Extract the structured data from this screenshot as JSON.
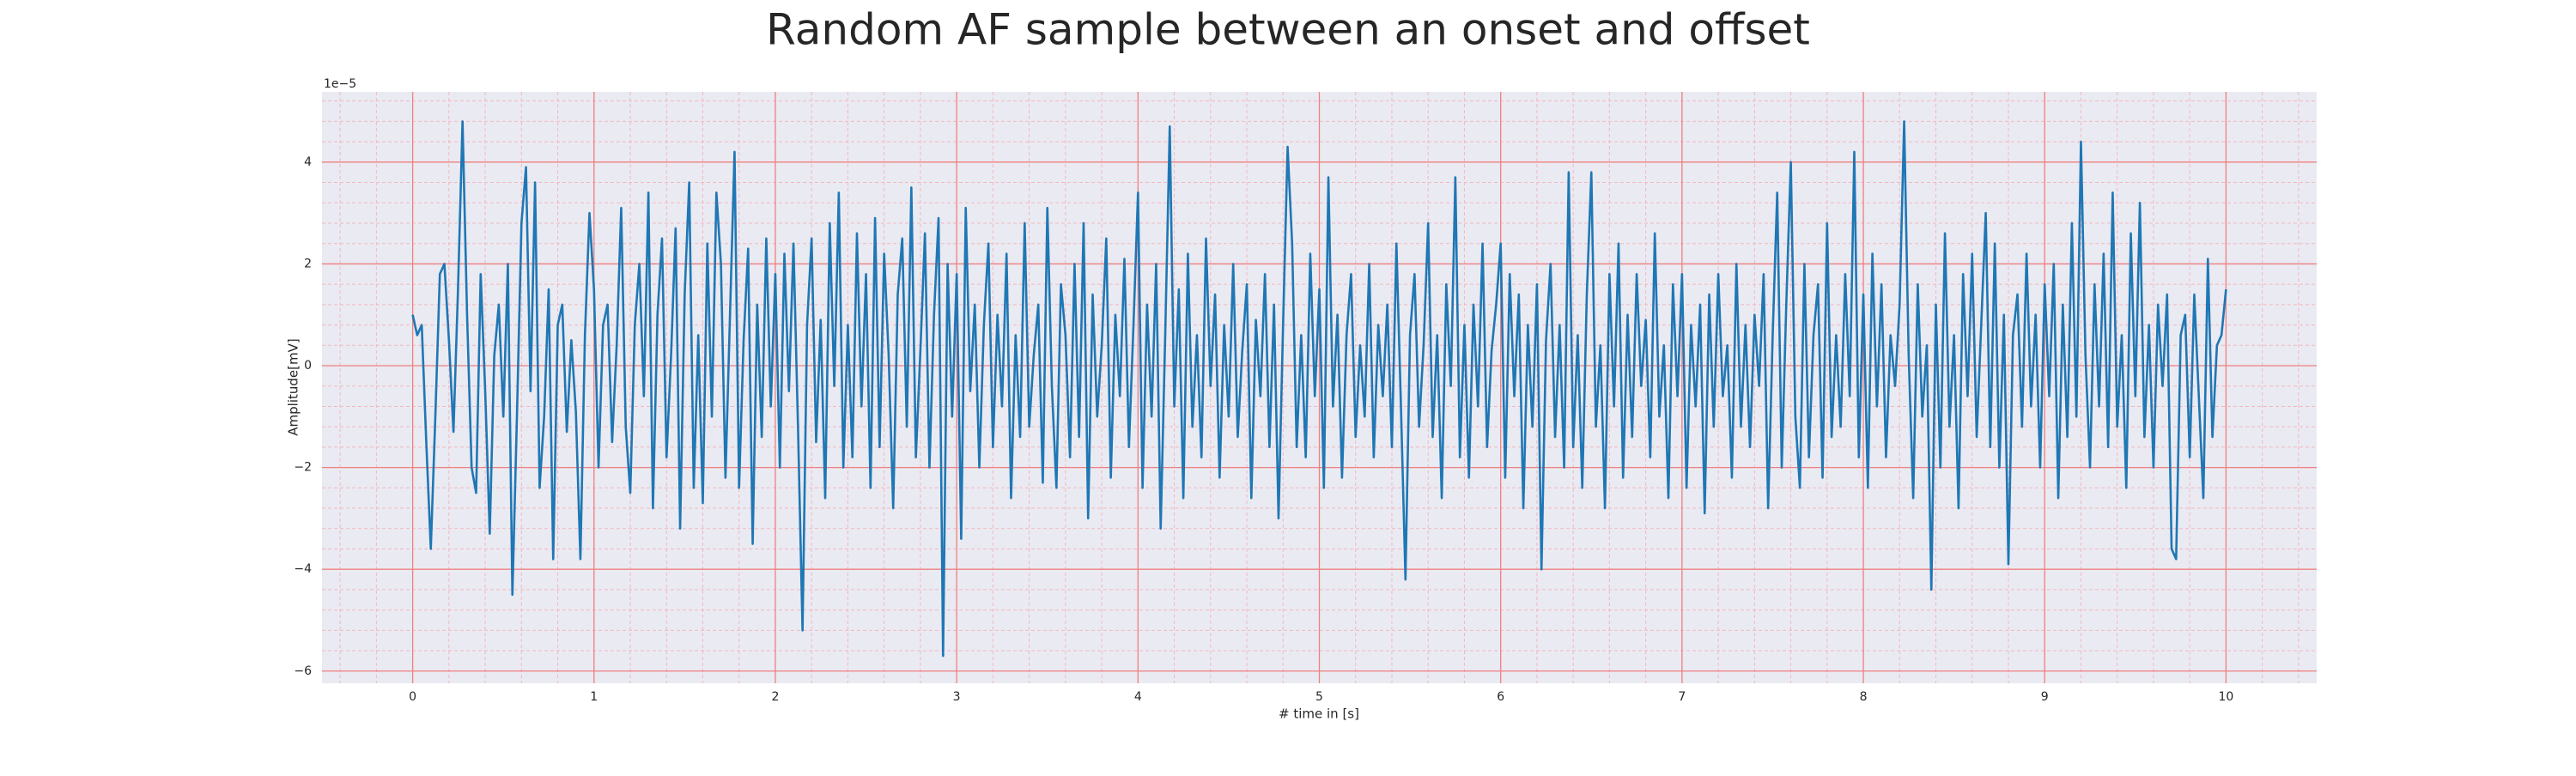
{
  "chart_data": {
    "type": "line",
    "title": "Random AF sample between an onset and offset",
    "xlabel": "# time in [s]",
    "ylabel": "Amplitude[mV]",
    "y_offset_label": "1e−5",
    "color": "#1f77b4",
    "grid": true,
    "minor_grid": true,
    "xlim": [
      -0.5,
      10.5
    ],
    "ylim": [
      -6.24,
      5.38
    ],
    "xticks": [
      0,
      1,
      2,
      3,
      4,
      5,
      6,
      7,
      8,
      9,
      10
    ],
    "yticks": [
      {
        "value": -6,
        "label": "−6"
      },
      {
        "value": -4,
        "label": "−4"
      },
      {
        "value": -2,
        "label": "−2"
      },
      0,
      2,
      4
    ],
    "x": [
      0,
      0.025,
      0.05,
      0.075,
      0.1,
      0.125,
      0.15,
      0.175,
      0.2,
      0.225,
      0.25,
      0.275,
      0.3,
      0.325,
      0.35,
      0.375,
      0.4,
      0.425,
      0.45,
      0.475,
      0.5,
      0.525,
      0.55,
      0.575,
      0.6,
      0.625,
      0.65,
      0.675,
      0.7,
      0.725,
      0.75,
      0.775,
      0.8,
      0.825,
      0.85,
      0.875,
      0.9,
      0.925,
      0.95,
      0.975,
      1,
      1.025,
      1.05,
      1.075,
      1.1,
      1.125,
      1.15,
      1.175,
      1.2,
      1.225,
      1.25,
      1.275,
      1.3,
      1.325,
      1.35,
      1.375,
      1.4,
      1.425,
      1.45,
      1.475,
      1.5,
      1.525,
      1.55,
      1.575,
      1.6,
      1.625,
      1.65,
      1.675,
      1.7,
      1.725,
      1.75,
      1.775,
      1.8,
      1.825,
      1.85,
      1.875,
      1.9,
      1.925,
      1.95,
      1.975,
      2,
      2.025,
      2.05,
      2.075,
      2.1,
      2.125,
      2.15,
      2.175,
      2.2,
      2.225,
      2.25,
      2.275,
      2.3,
      2.325,
      2.35,
      2.375,
      2.4,
      2.425,
      2.45,
      2.475,
      2.5,
      2.525,
      2.55,
      2.575,
      2.6,
      2.625,
      2.65,
      2.675,
      2.7,
      2.725,
      2.75,
      2.775,
      2.8,
      2.825,
      2.85,
      2.875,
      2.9,
      2.925,
      2.95,
      2.975,
      3,
      3.025,
      3.05,
      3.075,
      3.1,
      3.125,
      3.15,
      3.175,
      3.2,
      3.225,
      3.25,
      3.275,
      3.3,
      3.325,
      3.35,
      3.375,
      3.4,
      3.425,
      3.45,
      3.475,
      3.5,
      3.525,
      3.55,
      3.575,
      3.6,
      3.625,
      3.65,
      3.675,
      3.7,
      3.725,
      3.75,
      3.775,
      3.8,
      3.825,
      3.85,
      3.875,
      3.9,
      3.925,
      3.95,
      3.975,
      4,
      4.025,
      4.05,
      4.075,
      4.1,
      4.125,
      4.15,
      4.175,
      4.2,
      4.225,
      4.25,
      4.275,
      4.3,
      4.325,
      4.35,
      4.375,
      4.4,
      4.425,
      4.45,
      4.475,
      4.5,
      4.525,
      4.55,
      4.575,
      4.6,
      4.625,
      4.65,
      4.675,
      4.7,
      4.725,
      4.75,
      4.775,
      4.8,
      4.825,
      4.85,
      4.875,
      4.9,
      4.925,
      4.95,
      4.975,
      5,
      5.025,
      5.05,
      5.075,
      5.1,
      5.125,
      5.15,
      5.175,
      5.2,
      5.225,
      5.25,
      5.275,
      5.3,
      5.325,
      5.35,
      5.375,
      5.4,
      5.425,
      5.45,
      5.475,
      5.5,
      5.525,
      5.55,
      5.575,
      5.6,
      5.625,
      5.65,
      5.675,
      5.7,
      5.725,
      5.75,
      5.775,
      5.8,
      5.825,
      5.85,
      5.875,
      5.9,
      5.925,
      5.95,
      5.975,
      6,
      6.025,
      6.05,
      6.075,
      6.1,
      6.125,
      6.15,
      6.175,
      6.2,
      6.225,
      6.25,
      6.275,
      6.3,
      6.325,
      6.35,
      6.375,
      6.4,
      6.425,
      6.45,
      6.475,
      6.5,
      6.525,
      6.55,
      6.575,
      6.6,
      6.625,
      6.65,
      6.675,
      6.7,
      6.725,
      6.75,
      6.775,
      6.8,
      6.825,
      6.85,
      6.875,
      6.9,
      6.925,
      6.95,
      6.975,
      7,
      7.025,
      7.05,
      7.075,
      7.1,
      7.125,
      7.15,
      7.175,
      7.2,
      7.225,
      7.25,
      7.275,
      7.3,
      7.325,
      7.35,
      7.375,
      7.4,
      7.425,
      7.45,
      7.475,
      7.5,
      7.525,
      7.55,
      7.575,
      7.6,
      7.625,
      7.65,
      7.675,
      7.7,
      7.725,
      7.75,
      7.775,
      7.8,
      7.825,
      7.85,
      7.875,
      7.9,
      7.925,
      7.95,
      7.975,
      8,
      8.025,
      8.05,
      8.075,
      8.1,
      8.125,
      8.15,
      8.175,
      8.2,
      8.225,
      8.25,
      8.275,
      8.3,
      8.325,
      8.35,
      8.375,
      8.4,
      8.425,
      8.45,
      8.475,
      8.5,
      8.525,
      8.55,
      8.575,
      8.6,
      8.625,
      8.65,
      8.675,
      8.7,
      8.725,
      8.75,
      8.775,
      8.8,
      8.825,
      8.85,
      8.875,
      8.9,
      8.925,
      8.95,
      8.975,
      9,
      9.025,
      9.05,
      9.075,
      9.1,
      9.125,
      9.15,
      9.175,
      9.2,
      9.225,
      9.25,
      9.275,
      9.3,
      9.325,
      9.35,
      9.375,
      9.4,
      9.425,
      9.45,
      9.475,
      9.5,
      9.525,
      9.55,
      9.575,
      9.6,
      9.625,
      9.65,
      9.675,
      9.7,
      9.725,
      9.75,
      9.775,
      9.8,
      9.825,
      9.85,
      9.875,
      9.9,
      9.925,
      9.95,
      9.975,
      10
    ],
    "values": [
      1.0,
      0.6,
      0.8,
      -1.5,
      -3.6,
      -1.0,
      1.8,
      2.0,
      0.5,
      -1.3,
      1.5,
      4.8,
      1.0,
      -2.0,
      -2.5,
      1.8,
      -0.5,
      -3.3,
      0.2,
      1.2,
      -1.0,
      2.0,
      -4.5,
      -1.0,
      2.8,
      3.9,
      -0.5,
      3.6,
      -2.4,
      -1.0,
      1.5,
      -3.8,
      0.8,
      1.2,
      -1.3,
      0.5,
      -0.9,
      -3.8,
      0.6,
      3.0,
      1.5,
      -2.0,
      0.8,
      1.2,
      -1.5,
      0.4,
      3.1,
      -1.2,
      -2.5,
      0.8,
      2.0,
      -0.6,
      3.4,
      -2.8,
      1.0,
      2.5,
      -1.8,
      0.2,
      2.7,
      -3.2,
      1.4,
      3.6,
      -2.4,
      0.6,
      -2.7,
      2.4,
      -1.0,
      3.4,
      2.0,
      -2.2,
      1.0,
      4.2,
      -2.4,
      0.5,
      2.3,
      -3.5,
      1.2,
      -1.4,
      2.5,
      -0.8,
      1.8,
      -2.0,
      2.2,
      -0.5,
      2.4,
      -1.2,
      -5.2,
      0.8,
      2.5,
      -1.5,
      0.9,
      -2.6,
      2.8,
      -0.4,
      3.4,
      -2.0,
      0.8,
      -1.8,
      2.6,
      -0.8,
      1.8,
      -2.4,
      2.9,
      -1.6,
      2.2,
      0.2,
      -2.8,
      1.4,
      2.5,
      -1.2,
      3.5,
      -1.8,
      0.3,
      2.6,
      -2.0,
      1.0,
      2.9,
      -5.7,
      2.0,
      -1.0,
      1.8,
      -3.4,
      3.1,
      -0.5,
      1.2,
      -2.0,
      0.8,
      2.4,
      -1.6,
      1.0,
      -0.8,
      2.2,
      -2.6,
      0.6,
      -1.4,
      2.8,
      -1.2,
      0.2,
      1.2,
      -2.3,
      3.1,
      -0.4,
      -2.4,
      1.6,
      0.6,
      -1.8,
      2.0,
      -1.4,
      2.8,
      -3.0,
      1.4,
      -1.0,
      0.4,
      2.5,
      -2.2,
      1.0,
      -0.6,
      2.1,
      -1.6,
      0.8,
      3.4,
      -2.4,
      1.2,
      -1.0,
      2.0,
      -3.2,
      0.6,
      4.7,
      -0.8,
      1.5,
      -2.6,
      2.2,
      -1.2,
      0.6,
      -1.8,
      2.5,
      -0.4,
      1.4,
      -2.2,
      0.8,
      -1.0,
      2.0,
      -1.4,
      0.3,
      1.6,
      -2.6,
      0.9,
      -0.6,
      1.8,
      -1.6,
      1.2,
      -3.0,
      0.8,
      4.3,
      2.4,
      -1.6,
      0.6,
      -1.8,
      2.2,
      -0.6,
      1.5,
      -2.4,
      3.7,
      -0.8,
      1.0,
      -2.2,
      0.6,
      1.8,
      -1.4,
      0.4,
      -1.0,
      2.0,
      -1.8,
      0.8,
      -0.6,
      1.2,
      -1.6,
      2.4,
      -0.8,
      -4.2,
      0.6,
      1.8,
      -1.2,
      0.4,
      2.8,
      -1.4,
      0.6,
      -2.6,
      1.6,
      -0.4,
      3.7,
      -1.8,
      0.8,
      -2.2,
      1.2,
      -0.8,
      2.4,
      -1.6,
      0.3,
      1.2,
      2.4,
      -2.2,
      1.8,
      -0.6,
      1.4,
      -2.8,
      0.8,
      -1.2,
      1.6,
      -4.0,
      0.5,
      2.0,
      -1.4,
      0.8,
      -2.0,
      3.8,
      -1.6,
      0.6,
      -2.4,
      1.4,
      3.8,
      -1.2,
      0.4,
      -2.8,
      1.8,
      -0.8,
      2.4,
      -2.2,
      1.0,
      -1.4,
      1.8,
      -0.4,
      0.9,
      -1.8,
      2.6,
      -1.0,
      0.4,
      -2.6,
      1.6,
      -0.6,
      1.8,
      -2.4,
      0.8,
      -0.8,
      1.2,
      -2.9,
      1.4,
      -1.2,
      1.8,
      -0.6,
      0.4,
      -2.2,
      2.0,
      -1.2,
      0.8,
      -1.6,
      1.0,
      -0.4,
      1.8,
      -2.8,
      0.6,
      3.4,
      -2.0,
      1.2,
      4.0,
      -1.0,
      -2.4,
      2.0,
      -1.8,
      0.6,
      1.6,
      -2.2,
      2.8,
      -1.4,
      0.6,
      -1.2,
      1.8,
      -0.6,
      4.2,
      -1.8,
      1.4,
      -2.4,
      2.2,
      -0.8,
      1.6,
      -1.8,
      0.6,
      -0.4,
      1.2,
      4.8,
      0.2,
      -2.6,
      1.6,
      -1.0,
      0.4,
      -4.4,
      1.2,
      -2.0,
      2.6,
      -1.2,
      0.6,
      -2.8,
      1.8,
      -0.6,
      2.2,
      -1.4,
      0.8,
      3.0,
      -1.6,
      2.4,
      -2.0,
      1.0,
      -3.9,
      0.6,
      1.4,
      -1.2,
      2.2,
      -0.8,
      1.0,
      -2.0,
      1.6,
      -0.6,
      2.0,
      -2.6,
      1.2,
      -1.4,
      2.8,
      -1.0,
      4.4,
      0.2,
      -2.0,
      1.6,
      -0.8,
      2.2,
      -1.6,
      3.4,
      -1.2,
      0.6,
      -2.4,
      2.6,
      -0.6,
      3.2,
      -1.4,
      0.8,
      -2.0,
      1.2,
      -0.4,
      1.4,
      -3.6,
      -3.8,
      0.6,
      1.0,
      -1.8,
      1.4,
      -0.6,
      -2.6,
      2.1,
      -1.4,
      0.4,
      0.6,
      1.5
    ]
  }
}
